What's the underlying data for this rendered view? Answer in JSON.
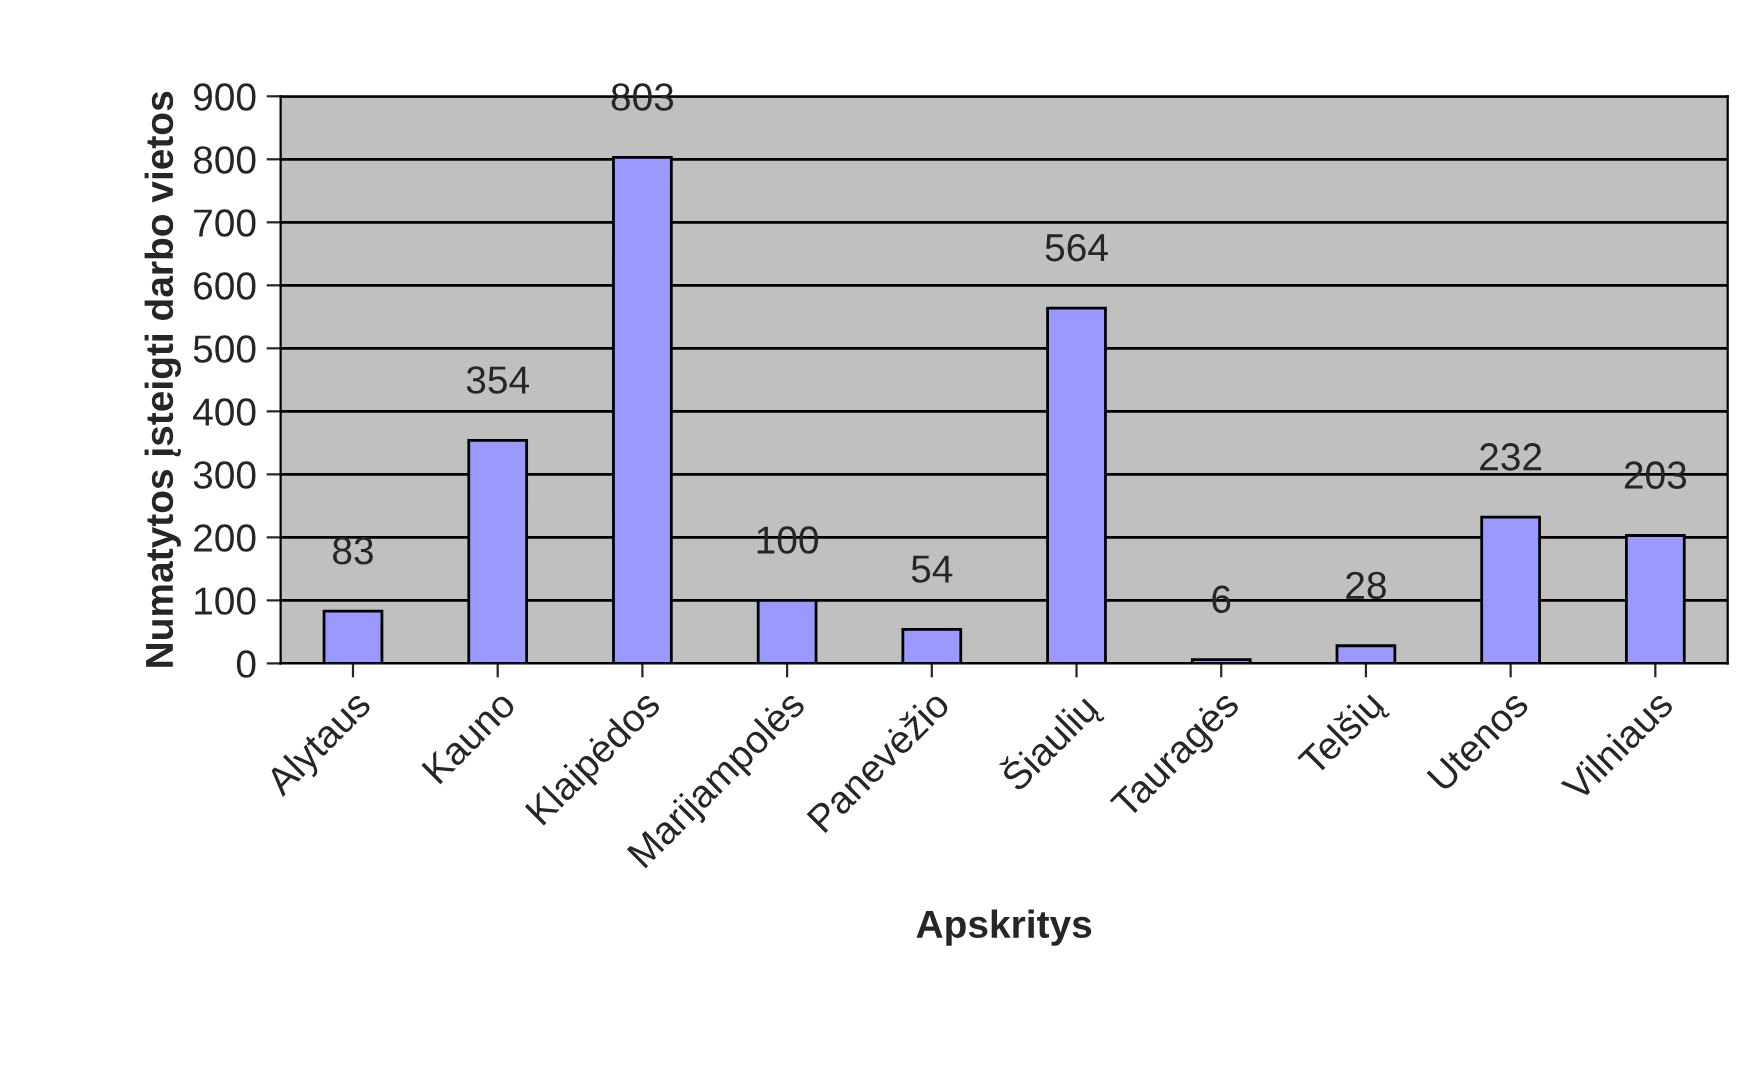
{
  "chart_data": {
    "type": "bar",
    "xlabel": "Apskritys",
    "ylabel": "Numatytos įsteigti darbo vietos",
    "categories": [
      "Alytaus",
      "Kauno",
      "Klaipėdos",
      "Marijampolės",
      "Panevėžio",
      "Šiaulių",
      "Tauragės",
      "Telšių",
      "Utenos",
      "Vilniaus"
    ],
    "values": [
      83,
      354,
      803,
      100,
      54,
      564,
      6,
      28,
      232,
      203
    ],
    "color": "#9999ff",
    "ylim": [
      0,
      900
    ],
    "yticks": [
      0,
      100,
      200,
      300,
      400,
      500,
      600,
      700,
      800,
      900
    ],
    "grid": "y",
    "data_labels": true
  }
}
